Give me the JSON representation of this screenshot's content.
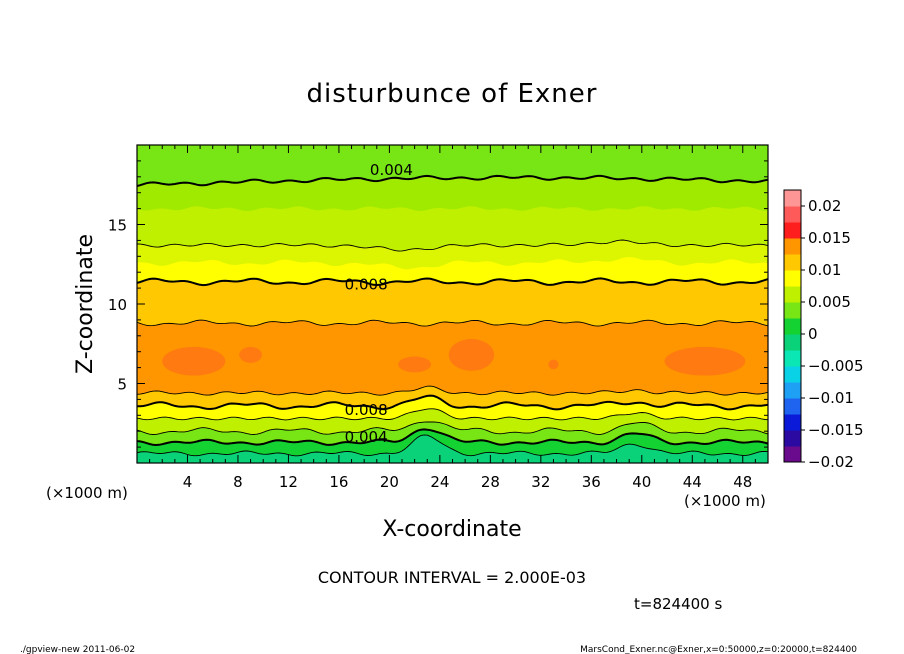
{
  "chart_data": {
    "type": "contour",
    "title": "disturbunce of Exner",
    "xlabel": "X-coordinate",
    "ylabel": "Z-coordinate",
    "x_unit": "(×1000 m)",
    "y_unit": "(×1000 m)",
    "xlim": [
      0,
      50
    ],
    "ylim": [
      0,
      20
    ],
    "x_ticks": [
      4,
      8,
      12,
      16,
      20,
      24,
      28,
      32,
      36,
      40,
      44,
      48
    ],
    "y_ticks": [
      5,
      10,
      15
    ],
    "contour_interval_text": "CONTOUR INTERVAL = 2.000E-03",
    "time_text": "t=824400 s",
    "contour_labels": [
      {
        "text": "0.004",
        "x": 20,
        "z": 18.5
      },
      {
        "text": "0.008",
        "x": 18,
        "z": 11.3
      },
      {
        "text": "0.008",
        "x": 18,
        "z": 3.4
      },
      {
        "text": "0.004",
        "x": 18,
        "z": 1.7
      }
    ],
    "colorbar": {
      "ticks": [
        "0.02",
        "0.015",
        "0.01",
        "0.005",
        "0",
        "−0.005",
        "−0.01",
        "−0.015",
        "−0.02"
      ],
      "levels": [
        {
          "min": -0.02,
          "max": -0.0175,
          "color": "#6a0a8c"
        },
        {
          "min": -0.0175,
          "max": -0.015,
          "color": "#2a0aa0"
        },
        {
          "min": -0.015,
          "max": -0.0125,
          "color": "#0a1ad8"
        },
        {
          "min": -0.0125,
          "max": -0.01,
          "color": "#1e64f0"
        },
        {
          "min": -0.01,
          "max": -0.0075,
          "color": "#1ea0f5"
        },
        {
          "min": -0.0075,
          "max": -0.005,
          "color": "#0ad2e6"
        },
        {
          "min": -0.005,
          "max": -0.0025,
          "color": "#0ae6b4"
        },
        {
          "min": -0.0025,
          "max": 0,
          "color": "#0ad278"
        },
        {
          "min": 0,
          "max": 0.0025,
          "color": "#14d232"
        },
        {
          "min": 0.0025,
          "max": 0.005,
          "color": "#78e614"
        },
        {
          "min": 0.005,
          "max": 0.0075,
          "color": "#bef000"
        },
        {
          "min": 0.0075,
          "max": 0.01,
          "color": "#ffff00"
        },
        {
          "min": 0.01,
          "max": 0.0125,
          "color": "#ffc800"
        },
        {
          "min": 0.0125,
          "max": 0.015,
          "color": "#ff9600"
        },
        {
          "min": 0.015,
          "max": 0.0175,
          "color": "#ff1e1e"
        },
        {
          "min": 0.0175,
          "max": 0.02,
          "color": "#ff5a5a"
        },
        {
          "min": 0.02,
          "max": 0.0225,
          "color": "#ff9696"
        }
      ]
    },
    "bands_z": [
      {
        "z0": 0.0,
        "z1": 0.6,
        "color": "#0ad278"
      },
      {
        "z0": 0.6,
        "z1": 1.3,
        "color": "#14d232"
      },
      {
        "z0": 1.3,
        "z1": 2.0,
        "color": "#78e614"
      },
      {
        "z0": 2.0,
        "z1": 2.8,
        "color": "#bef000"
      },
      {
        "z0": 2.8,
        "z1": 3.6,
        "color": "#ffff00"
      },
      {
        "z0": 3.6,
        "z1": 4.4,
        "color": "#ffc800"
      },
      {
        "z0": 4.4,
        "z1": 8.8,
        "color": "#ff9600"
      },
      {
        "z0": 8.8,
        "z1": 10.0,
        "color": "#ffc800"
      },
      {
        "z0": 10.0,
        "z1": 11.4,
        "color": "#ffc800"
      },
      {
        "z0": 11.4,
        "z1": 12.6,
        "color": "#ffff00"
      },
      {
        "z0": 12.6,
        "z1": 13.7,
        "color": "#dcf500"
      },
      {
        "z0": 13.7,
        "z1": 16.0,
        "color": "#bef000"
      },
      {
        "z0": 16.0,
        "z1": 17.8,
        "color": "#a0ea00"
      },
      {
        "z0": 17.8,
        "z1": 20.0,
        "color": "#78e614"
      }
    ],
    "contour_lines_z": [
      0.6,
      1.3,
      2.0,
      2.8,
      3.6,
      4.4,
      8.8,
      11.4,
      13.7,
      17.8
    ],
    "bold_contours_z": [
      1.3,
      3.6,
      11.4,
      17.8
    ]
  },
  "footer": {
    "left": "./gpview-new   2011-06-02",
    "right": "MarsCond_Exner.nc@Exner,x=0:50000,z=0:20000,t=824400"
  }
}
